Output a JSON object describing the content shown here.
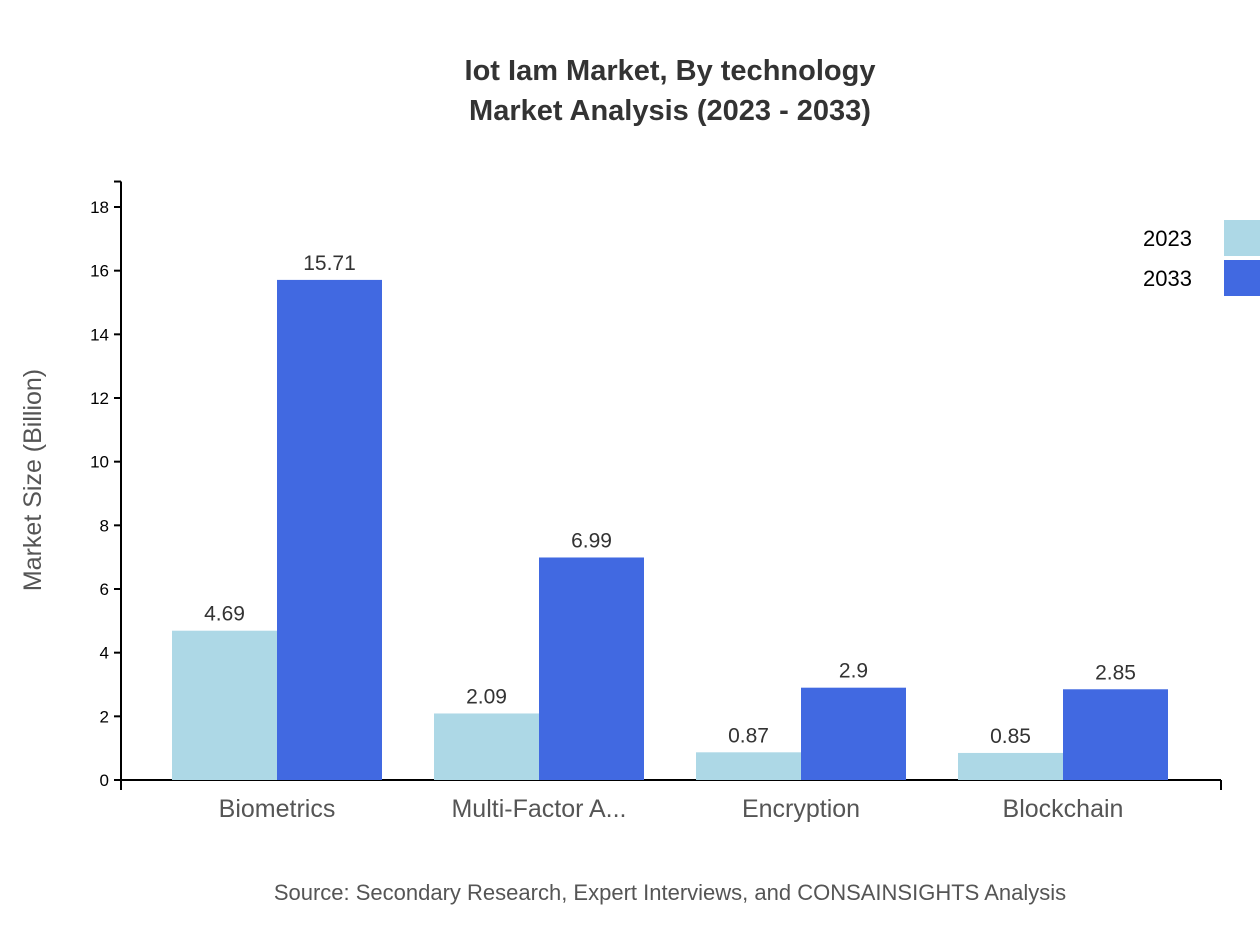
{
  "chart_data": {
    "type": "bar",
    "title": "Iot Iam Market, By technology",
    "subtitle": "Market Analysis (2023 - 2033)",
    "ylabel": "Market Size (Billion)",
    "xlabel": "",
    "ylim": [
      0,
      18.8
    ],
    "yticks": [
      0,
      2,
      4,
      6,
      8,
      10,
      12,
      14,
      16,
      18
    ],
    "categories": [
      "Biometrics",
      "Multi-Factor A...",
      "Encryption",
      "Blockchain"
    ],
    "series": [
      {
        "name": "2023",
        "color": "#add8e6",
        "values": [
          4.69,
          2.09,
          0.87,
          0.85
        ]
      },
      {
        "name": "2033",
        "color": "#4169e1",
        "values": [
          15.71,
          6.99,
          2.9,
          2.85
        ]
      }
    ],
    "grid": false,
    "legend": "top-right",
    "source": "Source: Secondary Research, Expert Interviews, and CONSAINSIGHTS Analysis"
  }
}
